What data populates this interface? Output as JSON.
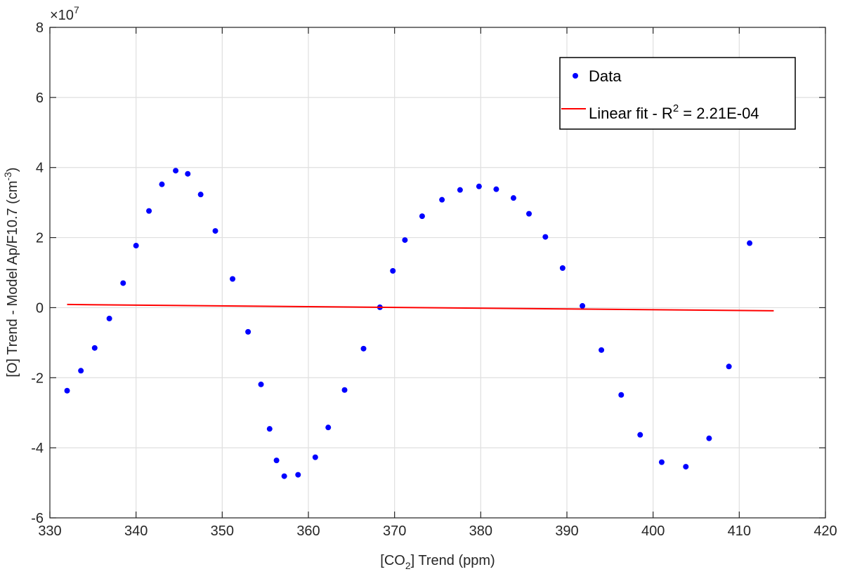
{
  "chart_data": {
    "type": "scatter",
    "xlabel": {
      "prefix": "[CO",
      "sub": "2",
      "suffix": "] Trend (ppm)"
    },
    "ylabel": {
      "prefix": "[O] Trend - Model Ap/F10.7 (cm",
      "sup": "-3",
      "suffix": ")"
    },
    "y_multiplier": {
      "base": "×10",
      "exp": "7"
    },
    "xlim": [
      330,
      420
    ],
    "ylim": [
      -6,
      8
    ],
    "xticks": [
      330,
      340,
      350,
      360,
      370,
      380,
      390,
      400,
      410,
      420
    ],
    "yticks": [
      -6,
      -4,
      -2,
      0,
      2,
      4,
      6,
      8
    ],
    "grid": true,
    "legend_position": "top-right",
    "series": [
      {
        "name": "Data",
        "kind": "scatter",
        "color": "#0000ff",
        "points": [
          [
            332.0,
            -2.37
          ],
          [
            333.6,
            -1.8
          ],
          [
            335.2,
            -1.15
          ],
          [
            336.9,
            -0.31
          ],
          [
            338.5,
            0.7
          ],
          [
            340.0,
            1.77
          ],
          [
            341.5,
            2.76
          ],
          [
            343.0,
            3.52
          ],
          [
            344.6,
            3.91
          ],
          [
            346.0,
            3.82
          ],
          [
            347.5,
            3.23
          ],
          [
            349.2,
            2.19
          ],
          [
            351.2,
            0.82
          ],
          [
            353.0,
            -0.69
          ],
          [
            354.5,
            -2.19
          ],
          [
            355.5,
            -3.46
          ],
          [
            356.3,
            -4.36
          ],
          [
            357.2,
            -4.81
          ],
          [
            358.8,
            -4.77
          ],
          [
            360.8,
            -4.27
          ],
          [
            362.3,
            -3.42
          ],
          [
            364.2,
            -2.35
          ],
          [
            366.4,
            -1.17
          ],
          [
            368.3,
            0.01
          ],
          [
            369.8,
            1.05
          ],
          [
            371.2,
            1.93
          ],
          [
            373.2,
            2.61
          ],
          [
            375.5,
            3.08
          ],
          [
            377.6,
            3.36
          ],
          [
            379.8,
            3.46
          ],
          [
            381.8,
            3.38
          ],
          [
            383.8,
            3.13
          ],
          [
            385.6,
            2.68
          ],
          [
            387.5,
            2.02
          ],
          [
            389.5,
            1.13
          ],
          [
            391.8,
            0.05
          ],
          [
            394.0,
            -1.21
          ],
          [
            396.3,
            -2.49
          ],
          [
            398.5,
            -3.63
          ],
          [
            401.0,
            -4.41
          ],
          [
            403.8,
            -4.54
          ],
          [
            406.5,
            -3.73
          ],
          [
            408.8,
            -1.68
          ],
          [
            411.2,
            1.84
          ]
        ]
      },
      {
        "name": "Linear fit - R",
        "name_sup": "2",
        "name_suffix": " = 2.21E-04",
        "kind": "line",
        "color": "#ff0000",
        "points": [
          [
            332.0,
            0.09
          ],
          [
            414.0,
            -0.09
          ]
        ]
      }
    ]
  }
}
